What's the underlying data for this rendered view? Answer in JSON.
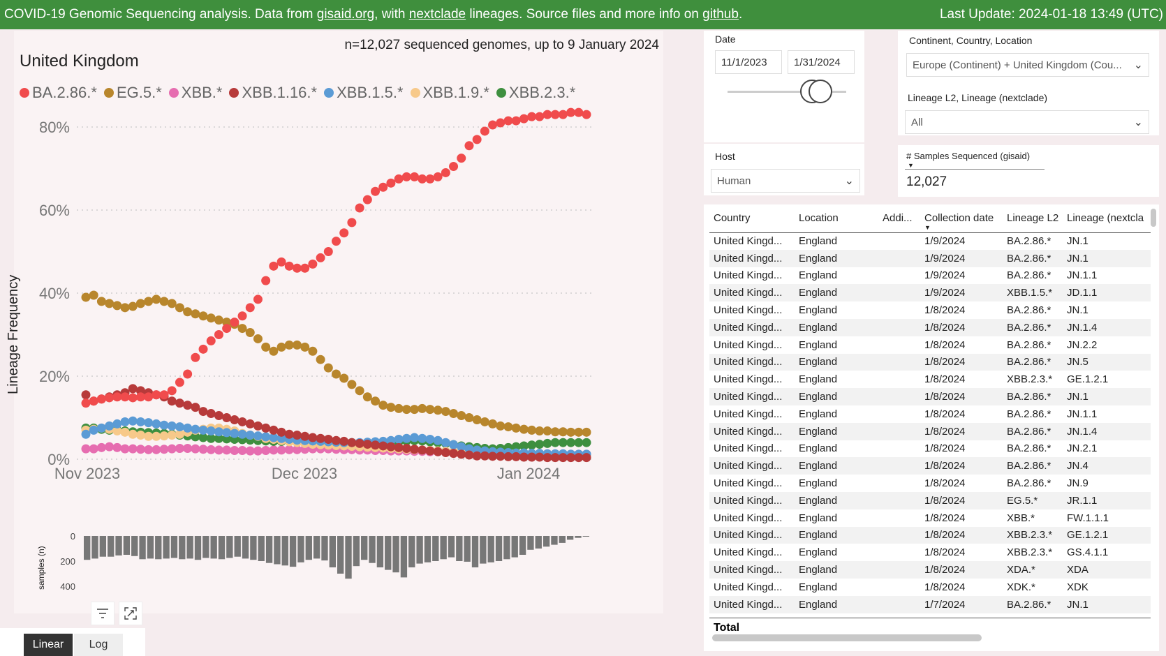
{
  "topbar": {
    "prefix": "COVID-19 Genomic Sequencing analysis. Data from ",
    "link_gisaid": "gisaid.org",
    "mid1": ", with ",
    "link_nextclade": "nextclade",
    "mid2": " lineages. Source files and more info on ",
    "link_github": "github",
    "suffix": ".",
    "last_update": "Last Update: 2024-01-18 13:49 (UTC)"
  },
  "chart": {
    "title": "United Kingdom",
    "n_text": "n=12,027 sequenced genomes, up to 9 January 2024",
    "ylabel": "Lineage Frequency",
    "ylabel2": "samples (n)"
  },
  "chart_data": [
    {
      "type": "scatter",
      "title": "United Kingdom",
      "ylabel": "Lineage Frequency",
      "x_ticks": [
        "Nov 2023",
        "Dec 2023",
        "Jan 2024"
      ],
      "y_ticks": [
        "0%",
        "20%",
        "40%",
        "60%",
        "80%"
      ],
      "ylim": [
        0,
        0.8
      ],
      "legend_position": "top-left",
      "series": [
        {
          "name": "BA.2.86.*",
          "color": "#f04b4c",
          "values": [
            0.135,
            0.14,
            0.145,
            0.148,
            0.15,
            0.15,
            0.148,
            0.15,
            0.15,
            0.155,
            0.155,
            0.165,
            0.185,
            0.205,
            0.245,
            0.265,
            0.285,
            0.3,
            0.315,
            0.33,
            0.345,
            0.365,
            0.385,
            0.43,
            0.465,
            0.475,
            0.465,
            0.46,
            0.46,
            0.47,
            0.485,
            0.5,
            0.525,
            0.545,
            0.57,
            0.605,
            0.625,
            0.645,
            0.655,
            0.665,
            0.675,
            0.68,
            0.68,
            0.675,
            0.675,
            0.68,
            0.69,
            0.705,
            0.725,
            0.755,
            0.77,
            0.79,
            0.805,
            0.81,
            0.815,
            0.815,
            0.82,
            0.825,
            0.825,
            0.83,
            0.83,
            0.83,
            0.835,
            0.835,
            0.83
          ]
        },
        {
          "name": "EG.5.*",
          "color": "#b8862c",
          "values": [
            0.39,
            0.395,
            0.38,
            0.375,
            0.37,
            0.365,
            0.368,
            0.375,
            0.38,
            0.385,
            0.38,
            0.375,
            0.365,
            0.355,
            0.35,
            0.345,
            0.34,
            0.335,
            0.33,
            0.325,
            0.315,
            0.305,
            0.29,
            0.27,
            0.26,
            0.27,
            0.275,
            0.275,
            0.27,
            0.26,
            0.24,
            0.22,
            0.205,
            0.195,
            0.18,
            0.165,
            0.15,
            0.14,
            0.13,
            0.125,
            0.122,
            0.12,
            0.12,
            0.122,
            0.12,
            0.118,
            0.115,
            0.11,
            0.105,
            0.1,
            0.095,
            0.09,
            0.085,
            0.08,
            0.078,
            0.075,
            0.072,
            0.07,
            0.068,
            0.068,
            0.066,
            0.066,
            0.065,
            0.065,
            0.065
          ]
        },
        {
          "name": "XBB.*",
          "color": "#e66db0",
          "values": [
            0.025,
            0.025,
            0.028,
            0.03,
            0.028,
            0.025,
            0.025,
            0.024,
            0.023,
            0.023,
            0.024,
            0.025,
            0.026,
            0.026,
            0.025,
            0.024,
            0.023,
            0.022,
            0.022,
            0.021,
            0.021,
            0.02,
            0.02,
            0.021,
            0.022,
            0.022,
            0.023,
            0.023,
            0.024,
            0.025,
            0.025,
            0.025,
            0.024,
            0.023,
            0.023,
            0.022,
            0.022,
            0.021,
            0.021,
            0.02,
            0.02,
            0.02,
            0.019,
            0.019,
            0.018,
            0.018,
            0.017,
            0.017,
            0.016,
            0.016,
            0.016,
            0.015,
            0.015,
            0.015,
            0.014,
            0.014,
            0.014,
            0.013,
            0.013,
            0.013,
            0.012,
            0.012,
            0.012,
            0.012,
            0.012
          ]
        },
        {
          "name": "XBB.1.16.*",
          "color": "#b73a3a",
          "values": [
            0.155,
            0.14,
            0.145,
            0.15,
            0.155,
            0.16,
            0.17,
            0.165,
            0.16,
            0.155,
            0.15,
            0.14,
            0.135,
            0.13,
            0.125,
            0.115,
            0.11,
            0.105,
            0.1,
            0.095,
            0.09,
            0.085,
            0.08,
            0.075,
            0.07,
            0.065,
            0.06,
            0.058,
            0.055,
            0.052,
            0.05,
            0.048,
            0.045,
            0.043,
            0.04,
            0.038,
            0.036,
            0.034,
            0.032,
            0.03,
            0.028,
            0.026,
            0.024,
            0.022,
            0.02,
            0.018,
            0.016,
            0.014,
            0.012,
            0.01,
            0.008,
            0.008,
            0.007,
            0.007,
            0.006,
            0.006,
            0.005,
            0.005,
            0.005,
            0.004,
            0.004,
            0.004,
            0.004,
            0.004,
            0.004
          ]
        },
        {
          "name": "XBB.1.5.*",
          "color": "#5b9bd5",
          "values": [
            0.06,
            0.07,
            0.075,
            0.08,
            0.085,
            0.09,
            0.092,
            0.09,
            0.088,
            0.085,
            0.082,
            0.08,
            0.078,
            0.075,
            0.072,
            0.07,
            0.068,
            0.066,
            0.064,
            0.062,
            0.06,
            0.058,
            0.056,
            0.054,
            0.052,
            0.05,
            0.048,
            0.046,
            0.045,
            0.044,
            0.043,
            0.042,
            0.041,
            0.04,
            0.04,
            0.04,
            0.041,
            0.042,
            0.043,
            0.045,
            0.048,
            0.05,
            0.052,
            0.05,
            0.048,
            0.045,
            0.04,
            0.035,
            0.03,
            0.025,
            0.022,
            0.02,
            0.018,
            0.017,
            0.016,
            0.015,
            0.015,
            0.014,
            0.014,
            0.013,
            0.013,
            0.013,
            0.012,
            0.012,
            0.012
          ]
        },
        {
          "name": "XBB.1.9.*",
          "color": "#f7c98a",
          "values": [
            0.07,
            0.072,
            0.075,
            0.072,
            0.068,
            0.065,
            0.06,
            0.058,
            0.055,
            0.055,
            0.056,
            0.058,
            0.06,
            0.065,
            0.07,
            0.072,
            0.075,
            0.075,
            0.072,
            0.068,
            0.062,
            0.058,
            0.055,
            0.05,
            0.048,
            0.045,
            0.042,
            0.04,
            0.038,
            0.036,
            0.035,
            0.034,
            0.033,
            0.032,
            0.031,
            0.03,
            0.029,
            0.028,
            0.027,
            0.026,
            0.025,
            0.024,
            0.023,
            0.022,
            0.021,
            0.02,
            0.019,
            0.018,
            0.017,
            0.016,
            0.015,
            0.015,
            0.014,
            0.014,
            0.013,
            0.013,
            0.012,
            0.012,
            0.012,
            0.011,
            0.011,
            0.011,
            0.01,
            0.01,
            0.01
          ]
        },
        {
          "name": "XBB.2.3.*",
          "color": "#3e8f3f",
          "values": [
            0.075,
            0.075,
            0.072,
            0.07,
            0.07,
            0.068,
            0.066,
            0.065,
            0.064,
            0.063,
            0.062,
            0.06,
            0.058,
            0.056,
            0.054,
            0.052,
            0.05,
            0.05,
            0.049,
            0.048,
            0.047,
            0.046,
            0.045,
            0.044,
            0.043,
            0.043,
            0.043,
            0.044,
            0.045,
            0.045,
            0.044,
            0.043,
            0.042,
            0.041,
            0.04,
            0.039,
            0.038,
            0.038,
            0.039,
            0.04,
            0.042,
            0.044,
            0.045,
            0.044,
            0.042,
            0.04,
            0.038,
            0.035,
            0.032,
            0.03,
            0.028,
            0.026,
            0.025,
            0.026,
            0.028,
            0.03,
            0.032,
            0.034,
            0.036,
            0.038,
            0.04,
            0.04,
            0.04,
            0.04,
            0.04
          ]
        }
      ]
    },
    {
      "type": "bar",
      "ylabel": "samples (n)",
      "y_ticks": [
        "0",
        "200",
        "400"
      ],
      "ylim": [
        0,
        400
      ],
      "values": [
        190,
        180,
        165,
        165,
        155,
        150,
        160,
        185,
        180,
        185,
        180,
        175,
        185,
        180,
        190,
        175,
        180,
        185,
        175,
        165,
        180,
        190,
        200,
        215,
        225,
        235,
        245,
        210,
        190,
        180,
        195,
        250,
        300,
        340,
        240,
        190,
        215,
        250,
        270,
        290,
        330,
        250,
        220,
        210,
        200,
        185,
        170,
        200,
        205,
        250,
        220,
        210,
        200,
        185,
        170,
        150,
        110,
        100,
        85,
        70,
        55,
        30,
        15,
        5
      ]
    }
  ],
  "filters": {
    "date_label": "Date",
    "date_start": "11/1/2023",
    "date_end": "1/31/2024",
    "host_label": "Host",
    "host_value": "Human",
    "location_label": "Continent, Country, Location",
    "location_value": "Europe (Continent) + United Kingdom (Cou...",
    "lineage_label": "Lineage L2, Lineage (nextclade)",
    "lineage_value": "All",
    "samples_label": "# Samples Sequenced (gisaid)",
    "samples_value": "12,027"
  },
  "scale": {
    "linear": "Linear",
    "log": "Log"
  },
  "table": {
    "headers": [
      "Country",
      "Location",
      "Addi...",
      "Collection date",
      "Lineage L2",
      "Lineage (nextcla"
    ],
    "rows": [
      [
        "United Kingd...",
        "England",
        "",
        "1/9/2024",
        "BA.2.86.*",
        "JN.1"
      ],
      [
        "United Kingd...",
        "England",
        "",
        "1/9/2024",
        "BA.2.86.*",
        "JN.1"
      ],
      [
        "United Kingd...",
        "England",
        "",
        "1/9/2024",
        "BA.2.86.*",
        "JN.1.1"
      ],
      [
        "United Kingd...",
        "England",
        "",
        "1/9/2024",
        "XBB.1.5.*",
        "JD.1.1"
      ],
      [
        "United Kingd...",
        "England",
        "",
        "1/8/2024",
        "BA.2.86.*",
        "JN.1"
      ],
      [
        "United Kingd...",
        "England",
        "",
        "1/8/2024",
        "BA.2.86.*",
        "JN.1.4"
      ],
      [
        "United Kingd...",
        "England",
        "",
        "1/8/2024",
        "BA.2.86.*",
        "JN.2.2"
      ],
      [
        "United Kingd...",
        "England",
        "",
        "1/8/2024",
        "BA.2.86.*",
        "JN.5"
      ],
      [
        "United Kingd...",
        "England",
        "",
        "1/8/2024",
        "XBB.2.3.*",
        "GE.1.2.1"
      ],
      [
        "United Kingd...",
        "England",
        "",
        "1/8/2024",
        "BA.2.86.*",
        "JN.1"
      ],
      [
        "United Kingd...",
        "England",
        "",
        "1/8/2024",
        "BA.2.86.*",
        "JN.1.1"
      ],
      [
        "United Kingd...",
        "England",
        "",
        "1/8/2024",
        "BA.2.86.*",
        "JN.1.4"
      ],
      [
        "United Kingd...",
        "England",
        "",
        "1/8/2024",
        "BA.2.86.*",
        "JN.2.1"
      ],
      [
        "United Kingd...",
        "England",
        "",
        "1/8/2024",
        "BA.2.86.*",
        "JN.4"
      ],
      [
        "United Kingd...",
        "England",
        "",
        "1/8/2024",
        "BA.2.86.*",
        "JN.9"
      ],
      [
        "United Kingd...",
        "England",
        "",
        "1/8/2024",
        "EG.5.*",
        "JR.1.1"
      ],
      [
        "United Kingd...",
        "England",
        "",
        "1/8/2024",
        "XBB.*",
        "FW.1.1.1"
      ],
      [
        "United Kingd...",
        "England",
        "",
        "1/8/2024",
        "XBB.2.3.*",
        "GE.1.2.1"
      ],
      [
        "United Kingd...",
        "England",
        "",
        "1/8/2024",
        "XBB.2.3.*",
        "GS.4.1.1"
      ],
      [
        "United Kingd...",
        "England",
        "",
        "1/8/2024",
        "XDA.*",
        "XDA"
      ],
      [
        "United Kingd...",
        "England",
        "",
        "1/8/2024",
        "XDK.*",
        "XDK"
      ],
      [
        "United Kingd...",
        "England",
        "",
        "1/7/2024",
        "BA.2.86.*",
        "JN.1"
      ]
    ],
    "total_label": "Total"
  },
  "icons": {
    "filter": "filter-icon",
    "focus": "focus-mode-icon",
    "sort": "sort-down-icon",
    "chevron": "chevron-down-icon"
  }
}
